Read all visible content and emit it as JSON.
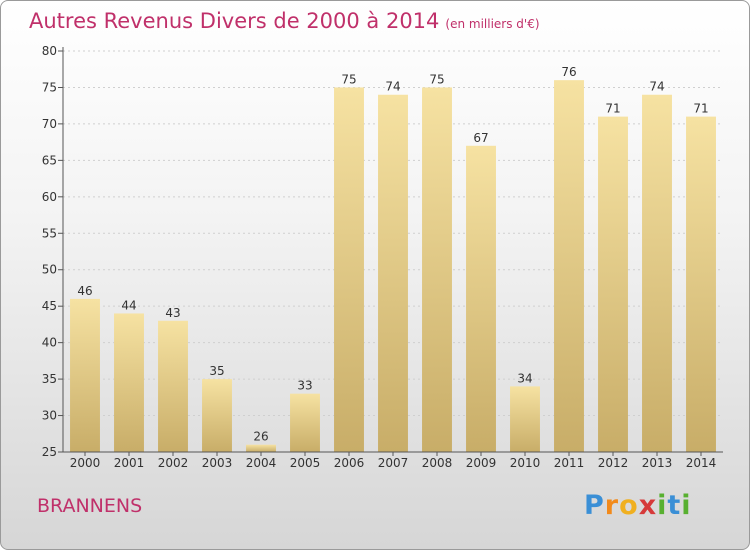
{
  "chart_data": {
    "type": "bar",
    "title": "Autres Revenus Divers de 2000 à 2014",
    "subtitle": "(en milliers d'€)",
    "categories": [
      "2000",
      "2001",
      "2002",
      "2003",
      "2004",
      "2005",
      "2006",
      "2007",
      "2008",
      "2009",
      "2010",
      "2011",
      "2012",
      "2013",
      "2014"
    ],
    "values": [
      46,
      44,
      43,
      35,
      26,
      33,
      75,
      74,
      75,
      67,
      34,
      76,
      71,
      74,
      71
    ],
    "ylim": [
      25,
      80
    ],
    "yticks": [
      25,
      30,
      35,
      40,
      45,
      50,
      55,
      60,
      65,
      70,
      75,
      80
    ],
    "grid": true,
    "bar_color": "#e8cf85"
  },
  "footer": {
    "commune": "BRANNENS",
    "logo_letters": [
      "P",
      "r",
      "o",
      "x",
      "i",
      "t",
      "i"
    ],
    "logo_colors": [
      "#3a8fd6",
      "#f28a1a",
      "#f0b020",
      "#d63a3a",
      "#58b030",
      "#3a8fd6",
      "#58b030"
    ]
  }
}
